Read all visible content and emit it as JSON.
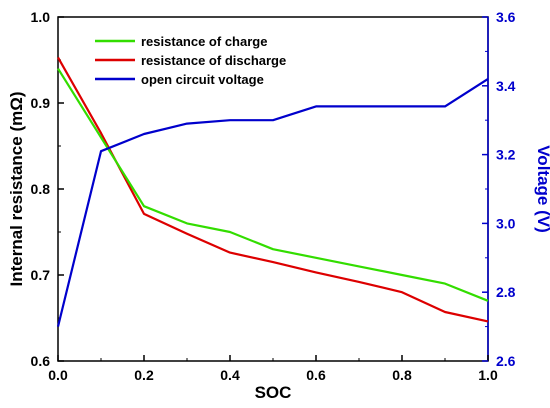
{
  "chart_data": {
    "type": "line",
    "xlabel": "SOC",
    "ylabel_left": "Internal resistance (mΩ)",
    "ylabel_right": "Voltage (V)",
    "xlim": [
      0,
      1
    ],
    "ylim_left": [
      0.6,
      1.0
    ],
    "ylim_right": [
      2.6,
      3.6
    ],
    "x_ticks": [
      "0.0",
      "0.2",
      "0.4",
      "0.6",
      "0.8",
      "1.0"
    ],
    "y_left_ticks": [
      "0.6",
      "0.7",
      "0.8",
      "0.9",
      "1.0"
    ],
    "y_right_ticks": [
      "2.6",
      "2.8",
      "3.0",
      "3.2",
      "3.4",
      "3.6"
    ],
    "grid": false,
    "legend_position": "top-left",
    "axis_colors": {
      "left": "#000000",
      "right": "#0000cc"
    },
    "series": [
      {
        "name": "resistance of charge",
        "axis": "left",
        "color": "#33dd00",
        "x": [
          0.0,
          0.1,
          0.2,
          0.3,
          0.4,
          0.5,
          0.6,
          0.7,
          0.8,
          0.9,
          1.0
        ],
        "y": [
          0.94,
          0.86,
          0.78,
          0.76,
          0.75,
          0.73,
          0.72,
          0.71,
          0.7,
          0.69,
          0.67
        ]
      },
      {
        "name": "resistance of discharge",
        "axis": "left",
        "color": "#dd0000",
        "x": [
          0.0,
          0.1,
          0.2,
          0.3,
          0.4,
          0.5,
          0.6,
          0.7,
          0.8,
          0.9,
          1.0
        ],
        "y": [
          0.953,
          0.865,
          0.771,
          0.748,
          0.726,
          0.715,
          0.703,
          0.692,
          0.68,
          0.657,
          0.646
        ]
      },
      {
        "name": "open circuit voltage",
        "axis": "right",
        "color": "#0000cc",
        "x": [
          0.0,
          0.1,
          0.2,
          0.3,
          0.4,
          0.5,
          0.6,
          0.7,
          0.8,
          0.9,
          1.0
        ],
        "y": [
          2.7,
          3.21,
          3.26,
          3.29,
          3.3,
          3.3,
          3.34,
          3.34,
          3.34,
          3.34,
          3.42
        ]
      }
    ]
  }
}
